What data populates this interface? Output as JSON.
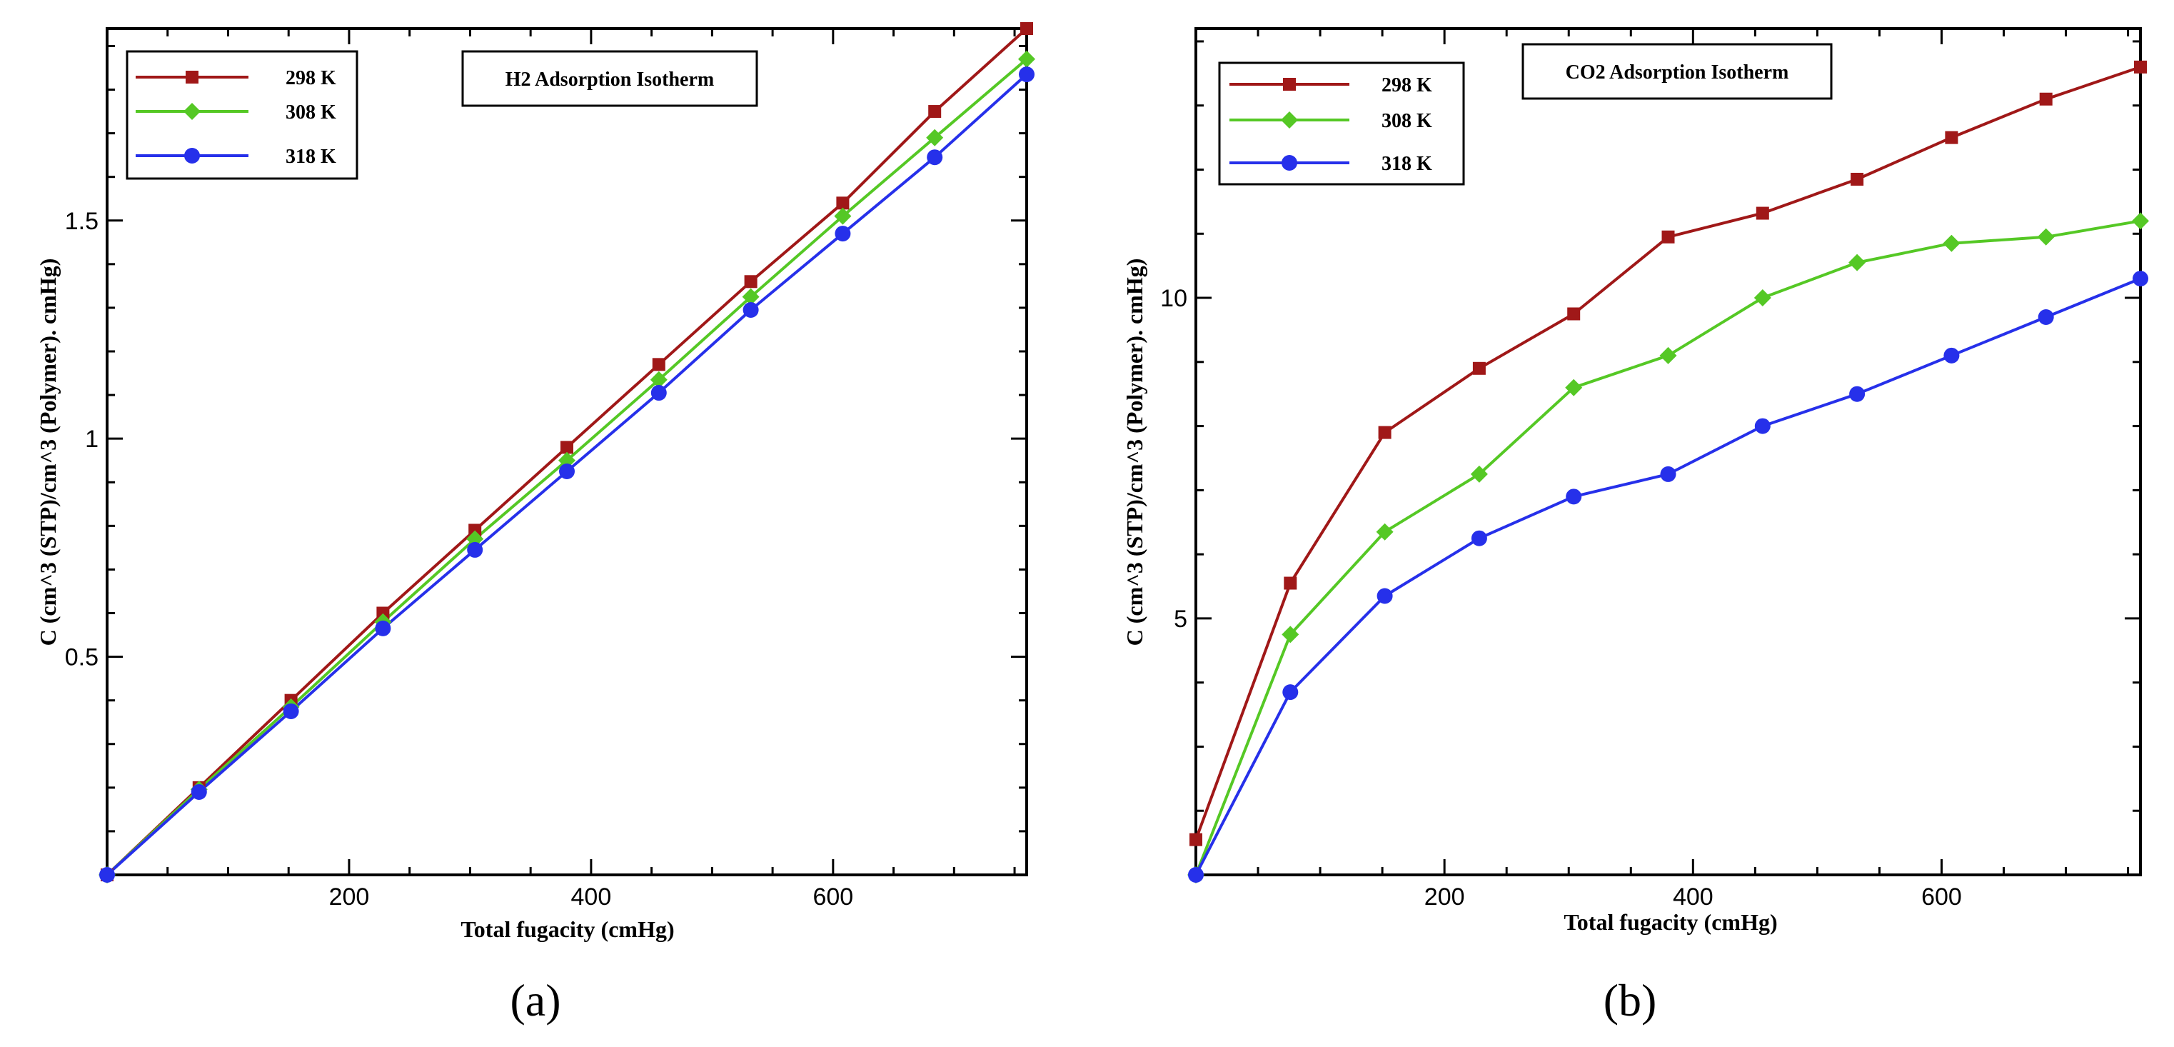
{
  "panels": [
    {
      "panel_label": "(a)",
      "legend_title": "H2 Adsorption Isotherm",
      "ylabel": "C (cm^3 (STP)/cm^3 (Polymer). cmHg)"
    },
    {
      "panel_label": "(b)",
      "legend_title": "CO2 Adsorption Isotherm",
      "ylabel": "C (cm^3 (STP)/cm^3 (Polymer). cmHg)"
    }
  ],
  "colors": {
    "s298": "#a01818",
    "s308": "#55c825",
    "s318": "#2630ea",
    "axis": "#000000"
  },
  "chart_data": [
    {
      "type": "line",
      "title": "H2 Adsorption Isotherm",
      "xlabel": "Total fugacity (cmHg)",
      "ylabel": "C (cm^3 (STP)/cm^3 (Polymer). cmHg)",
      "xlim": [
        0,
        760
      ],
      "ylim": [
        0,
        1.94
      ],
      "xticks": [
        200,
        400,
        600
      ],
      "xtick_labels": [
        "200",
        "400",
        "600"
      ],
      "yticks": [
        0.5,
        1,
        1.5
      ],
      "ytick_labels": [
        "0.5",
        "1",
        "1.5"
      ],
      "grid": false,
      "legend_position": "top-left",
      "x": [
        0,
        76,
        152,
        228,
        304,
        380,
        456,
        532,
        608,
        684,
        760
      ],
      "series": [
        {
          "name": "298 K",
          "marker": "square",
          "values": [
            0.0,
            0.2,
            0.4,
            0.6,
            0.79,
            0.98,
            1.17,
            1.36,
            1.54,
            1.75,
            1.94
          ]
        },
        {
          "name": "308 K",
          "marker": "diamond",
          "values": [
            0.0,
            0.196,
            0.385,
            0.58,
            0.77,
            0.95,
            1.135,
            1.325,
            1.51,
            1.69,
            1.87
          ]
        },
        {
          "name": "318 K",
          "marker": "circle",
          "values": [
            0.0,
            0.19,
            0.375,
            0.565,
            0.745,
            0.925,
            1.105,
            1.295,
            1.47,
            1.645,
            1.835
          ]
        }
      ]
    },
    {
      "type": "line",
      "title": "CO2 Adsorption Isotherm",
      "xlabel": "Total fugacity (cmHg)",
      "ylabel": "C (cm^3 (STP)/cm^3 (Polymer). cmHg)",
      "xlim": [
        0,
        760
      ],
      "ylim": [
        1,
        14.2
      ],
      "xticks": [
        200,
        400,
        600
      ],
      "xtick_labels": [
        "200",
        "400",
        "600"
      ],
      "yticks": [
        5,
        10
      ],
      "ytick_labels": [
        "5",
        "10"
      ],
      "grid": false,
      "legend_position": "top-left",
      "x": [
        0,
        76,
        152,
        228,
        304,
        380,
        456,
        532,
        608,
        684,
        760
      ],
      "series": [
        {
          "name": "298 K",
          "marker": "square",
          "values": [
            1.55,
            5.55,
            7.9,
            8.9,
            9.75,
            10.95,
            11.32,
            11.85,
            12.5,
            13.1,
            13.6
          ]
        },
        {
          "name": "308 K",
          "marker": "diamond",
          "values": [
            1.0,
            4.75,
            6.35,
            7.25,
            8.6,
            9.1,
            10.0,
            10.55,
            10.85,
            10.95,
            11.2
          ]
        },
        {
          "name": "318 K",
          "marker": "circle",
          "values": [
            1.0,
            3.85,
            5.35,
            6.25,
            6.9,
            7.25,
            8.0,
            8.5,
            9.1,
            9.7,
            10.3
          ]
        }
      ]
    }
  ]
}
